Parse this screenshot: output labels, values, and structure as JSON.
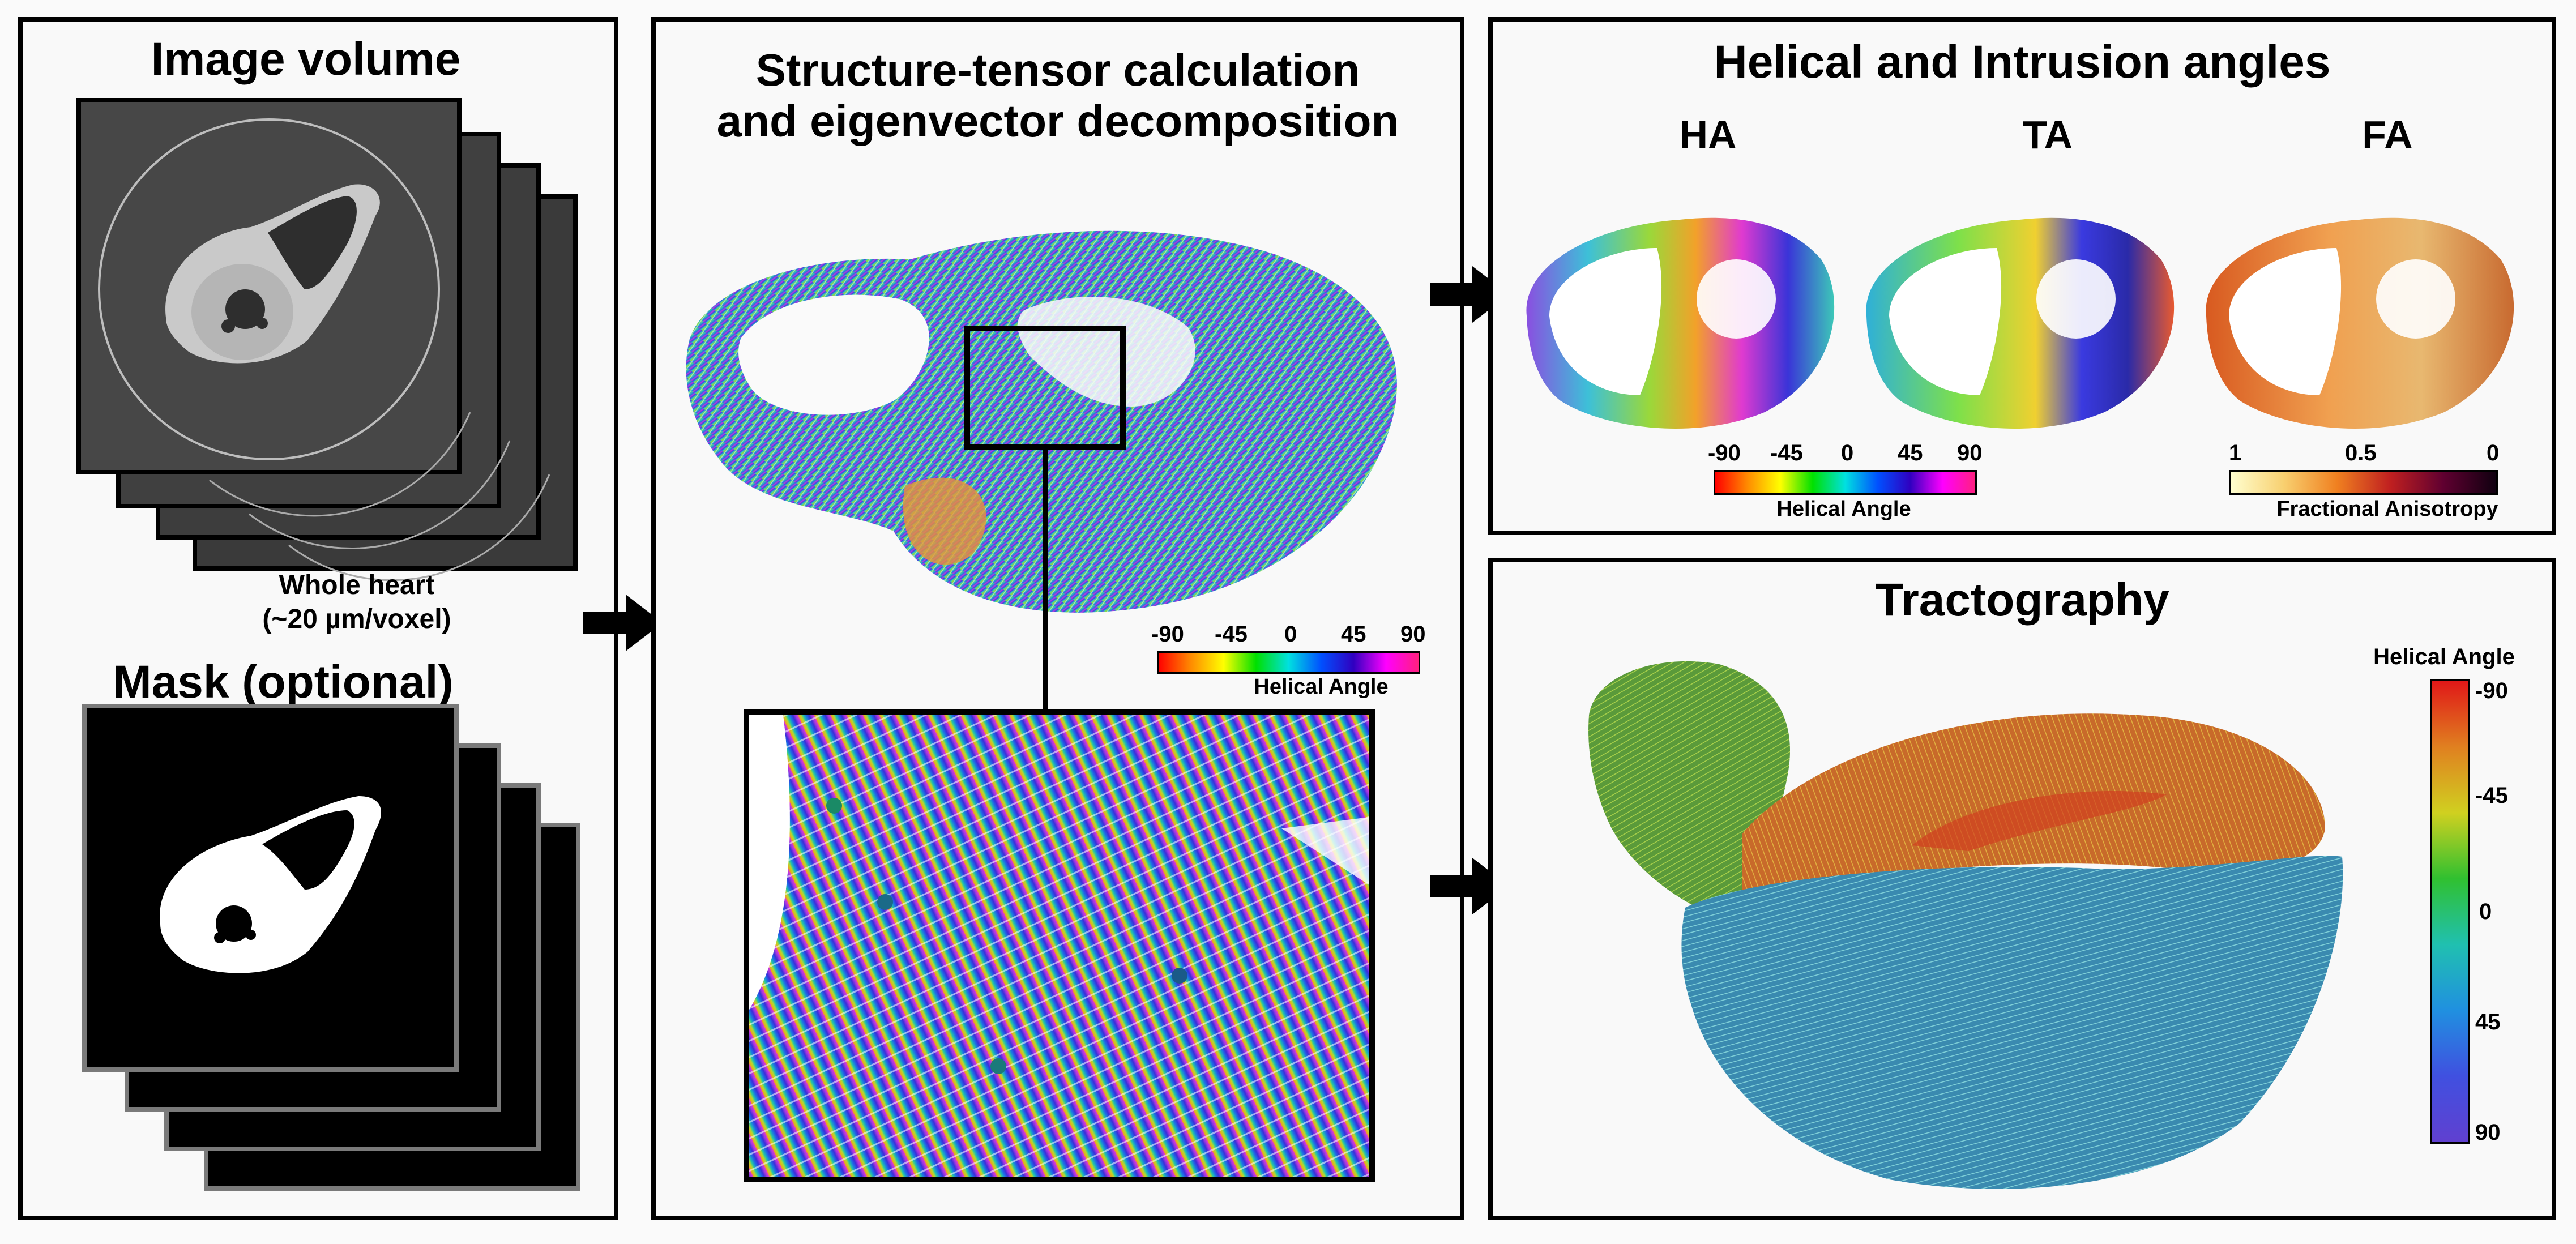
{
  "panel_input": {
    "image_volume_title": "Image volume",
    "whole_heart_line1": "Whole heart",
    "whole_heart_line2": "(~20 µm/voxel)",
    "mask_title": "Mask (optional)"
  },
  "panel_tensor": {
    "title_line1": "Structure-tensor calculation",
    "title_line2": "and eigenvector decomposition",
    "colorbar": {
      "ticks": [
        "-90",
        "-45",
        "0",
        "45",
        "90"
      ],
      "label": "Helical Angle"
    }
  },
  "panel_angles": {
    "title": "Helical and Intrusion angles",
    "maps": [
      "HA",
      "TA",
      "FA"
    ],
    "ha_colorbar": {
      "ticks": [
        "-90",
        "-45",
        "0",
        "45",
        "90"
      ],
      "label": "Helical Angle"
    },
    "fa_colorbar": {
      "ticks": [
        "1",
        "0.5",
        "0"
      ],
      "label": "Fractional Anisotropy"
    }
  },
  "panel_tracto": {
    "title": "Tractography",
    "colorbar": {
      "label": "Helical Angle",
      "ticks": [
        "-90",
        "-45",
        "0",
        "45",
        "90"
      ]
    }
  },
  "colors": {
    "border": "#000000",
    "slice_dark": "#3a3a3a",
    "mask_bg": "#000000",
    "mask_frame": "#7a7a7a"
  }
}
